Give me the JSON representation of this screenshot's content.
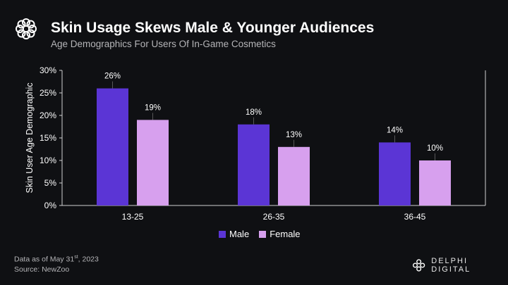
{
  "header": {
    "title": "Skin Usage Skews Male & Younger Audiences",
    "subtitle": "Age Demographics For Users Of In-Game Cosmetics"
  },
  "chart_data": {
    "type": "bar",
    "categories": [
      "13-25",
      "26-35",
      "36-45"
    ],
    "series": [
      {
        "name": "Male",
        "values": [
          26,
          18,
          14
        ],
        "color": "#5b35d5"
      },
      {
        "name": "Female",
        "values": [
          19,
          13,
          10
        ],
        "color": "#d7a0ee"
      }
    ],
    "ylabel": "Skin User Age Demographic",
    "xlabel": "",
    "ylim": [
      0,
      30
    ],
    "yticks": [
      0,
      5,
      10,
      15,
      20,
      25,
      30
    ],
    "value_suffix": "%",
    "legend": "bottom-center",
    "grid": false
  },
  "footer": {
    "date_prefix": "Data as of May 31",
    "date_sup": "st",
    "date_suffix": ", 2023",
    "source": "Source: NewZoo",
    "brand": "DELPHI DIGITAL"
  }
}
